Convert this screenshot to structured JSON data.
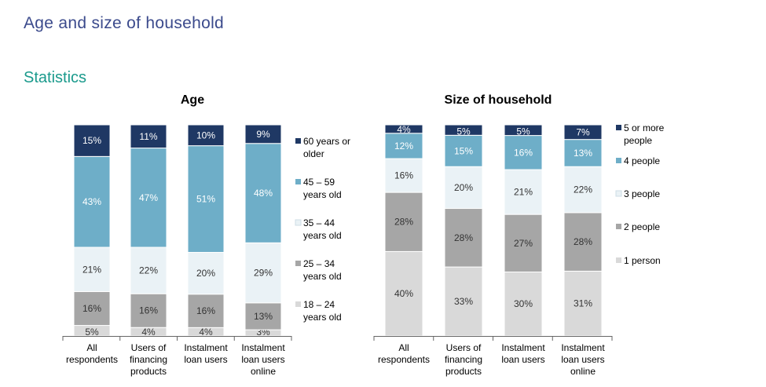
{
  "page": {
    "title": "Age and size of household",
    "section": "Statistics"
  },
  "chart_data": [
    {
      "type": "bar",
      "stacked": true,
      "title": "Age",
      "categories": [
        [
          "All",
          "respondents"
        ],
        [
          "Users of",
          "financing",
          "products"
        ],
        [
          "Instalment",
          "loan users"
        ],
        [
          "Instalment",
          "loan users",
          "online"
        ]
      ],
      "series": [
        {
          "name": "18 – 24 years old",
          "label_lines": [
            "18 – 24",
            "years old"
          ],
          "color": "#d9d9d9",
          "values": [
            5,
            4,
            4,
            3
          ]
        },
        {
          "name": "25 – 34 years old",
          "label_lines": [
            "25 – 34",
            "years old"
          ],
          "color": "#a6a6a6",
          "values": [
            16,
            16,
            16,
            13
          ]
        },
        {
          "name": "35 – 44 years old",
          "label_lines": [
            "35 – 44",
            "years old"
          ],
          "color": "#eaf2f6",
          "values": [
            21,
            22,
            20,
            29
          ]
        },
        {
          "name": "45 – 59 years old",
          "label_lines": [
            "45 – 59",
            "years old"
          ],
          "color": "#6eaec8",
          "values": [
            43,
            47,
            51,
            48
          ]
        },
        {
          "name": "60 years or older",
          "label_lines": [
            "60 years or",
            "older"
          ],
          "color": "#1f3864",
          "values": [
            15,
            11,
            10,
            9
          ]
        }
      ],
      "ylim": [
        0,
        100
      ],
      "value_suffix": "%"
    },
    {
      "type": "bar",
      "stacked": true,
      "title": "Size of household",
      "categories": [
        [
          "All",
          "respondents"
        ],
        [
          "Users of",
          "financing",
          "products"
        ],
        [
          "Instalment",
          "loan users"
        ],
        [
          "Instalment",
          "loan users",
          "online"
        ]
      ],
      "series": [
        {
          "name": "1 person",
          "label_lines": [
            "1 person"
          ],
          "color": "#d9d9d9",
          "values": [
            40,
            33,
            30,
            31
          ]
        },
        {
          "name": "2 people",
          "label_lines": [
            "2 people"
          ],
          "color": "#a6a6a6",
          "values": [
            28,
            28,
            27,
            28
          ]
        },
        {
          "name": "3 people",
          "label_lines": [
            "3 people"
          ],
          "color": "#eaf2f6",
          "values": [
            16,
            20,
            21,
            22
          ]
        },
        {
          "name": "4 people",
          "label_lines": [
            "4 people"
          ],
          "color": "#6eaec8",
          "values": [
            12,
            15,
            16,
            13
          ]
        },
        {
          "name": "5 or more people",
          "label_lines": [
            "5 or more",
            "people"
          ],
          "color": "#1f3864",
          "values": [
            4,
            5,
            5,
            7
          ]
        }
      ],
      "ylim": [
        0,
        100
      ],
      "value_suffix": "%"
    }
  ]
}
